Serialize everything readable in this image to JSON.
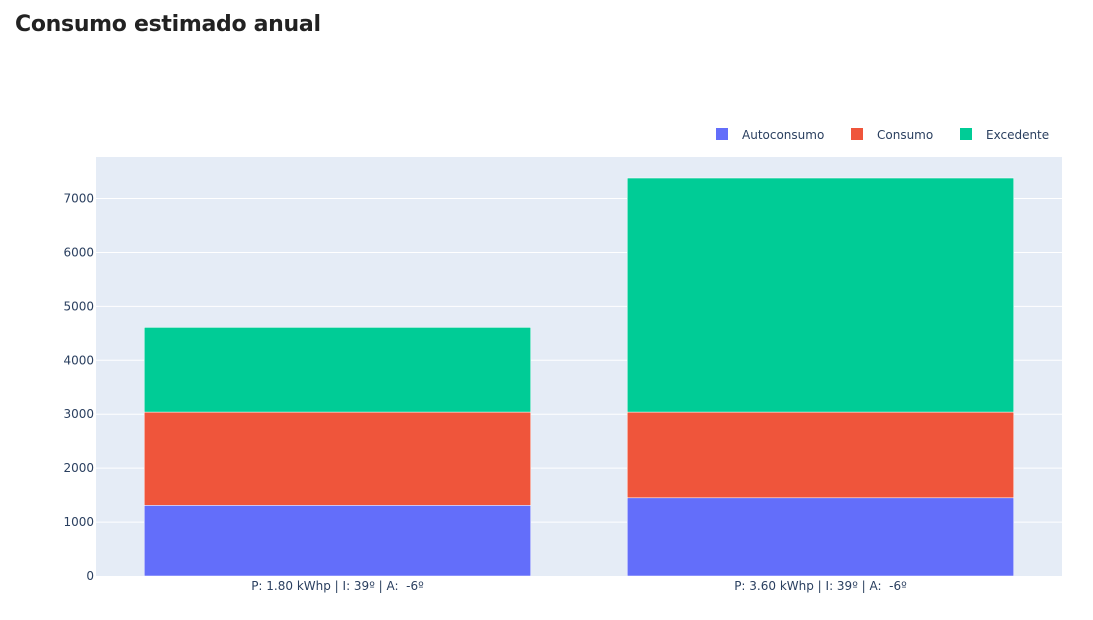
{
  "page": {
    "title": "Consumo estimado anual"
  },
  "colors": {
    "plot_background": "#e5ecf6",
    "gridline": "#ffffff",
    "tick_text": "#2a3f5f",
    "Autoconsumo": "#636efa",
    "Consumo": "#ef553b",
    "Excedente": "#00cc96"
  },
  "chart_data": {
    "type": "bar",
    "stacked": true,
    "title": "",
    "xlabel": "",
    "ylabel": "",
    "categories": [
      "P: 1.80 kWhp | I: 39º | A:  -6º",
      "P: 3.60 kWhp | I: 39º | A:  -6º"
    ],
    "series": [
      {
        "name": "Autoconsumo",
        "values": [
          1310,
          1450
        ]
      },
      {
        "name": "Consumo",
        "values": [
          1730,
          1590
        ]
      },
      {
        "name": "Excedente",
        "values": [
          1570,
          4340
        ]
      }
    ],
    "ylim": [
      0,
      7770
    ],
    "yticks": [
      0,
      1000,
      2000,
      3000,
      4000,
      5000,
      6000,
      7000
    ],
    "grid": true,
    "legend_position": "top-right",
    "legend_orientation": "horizontal"
  }
}
